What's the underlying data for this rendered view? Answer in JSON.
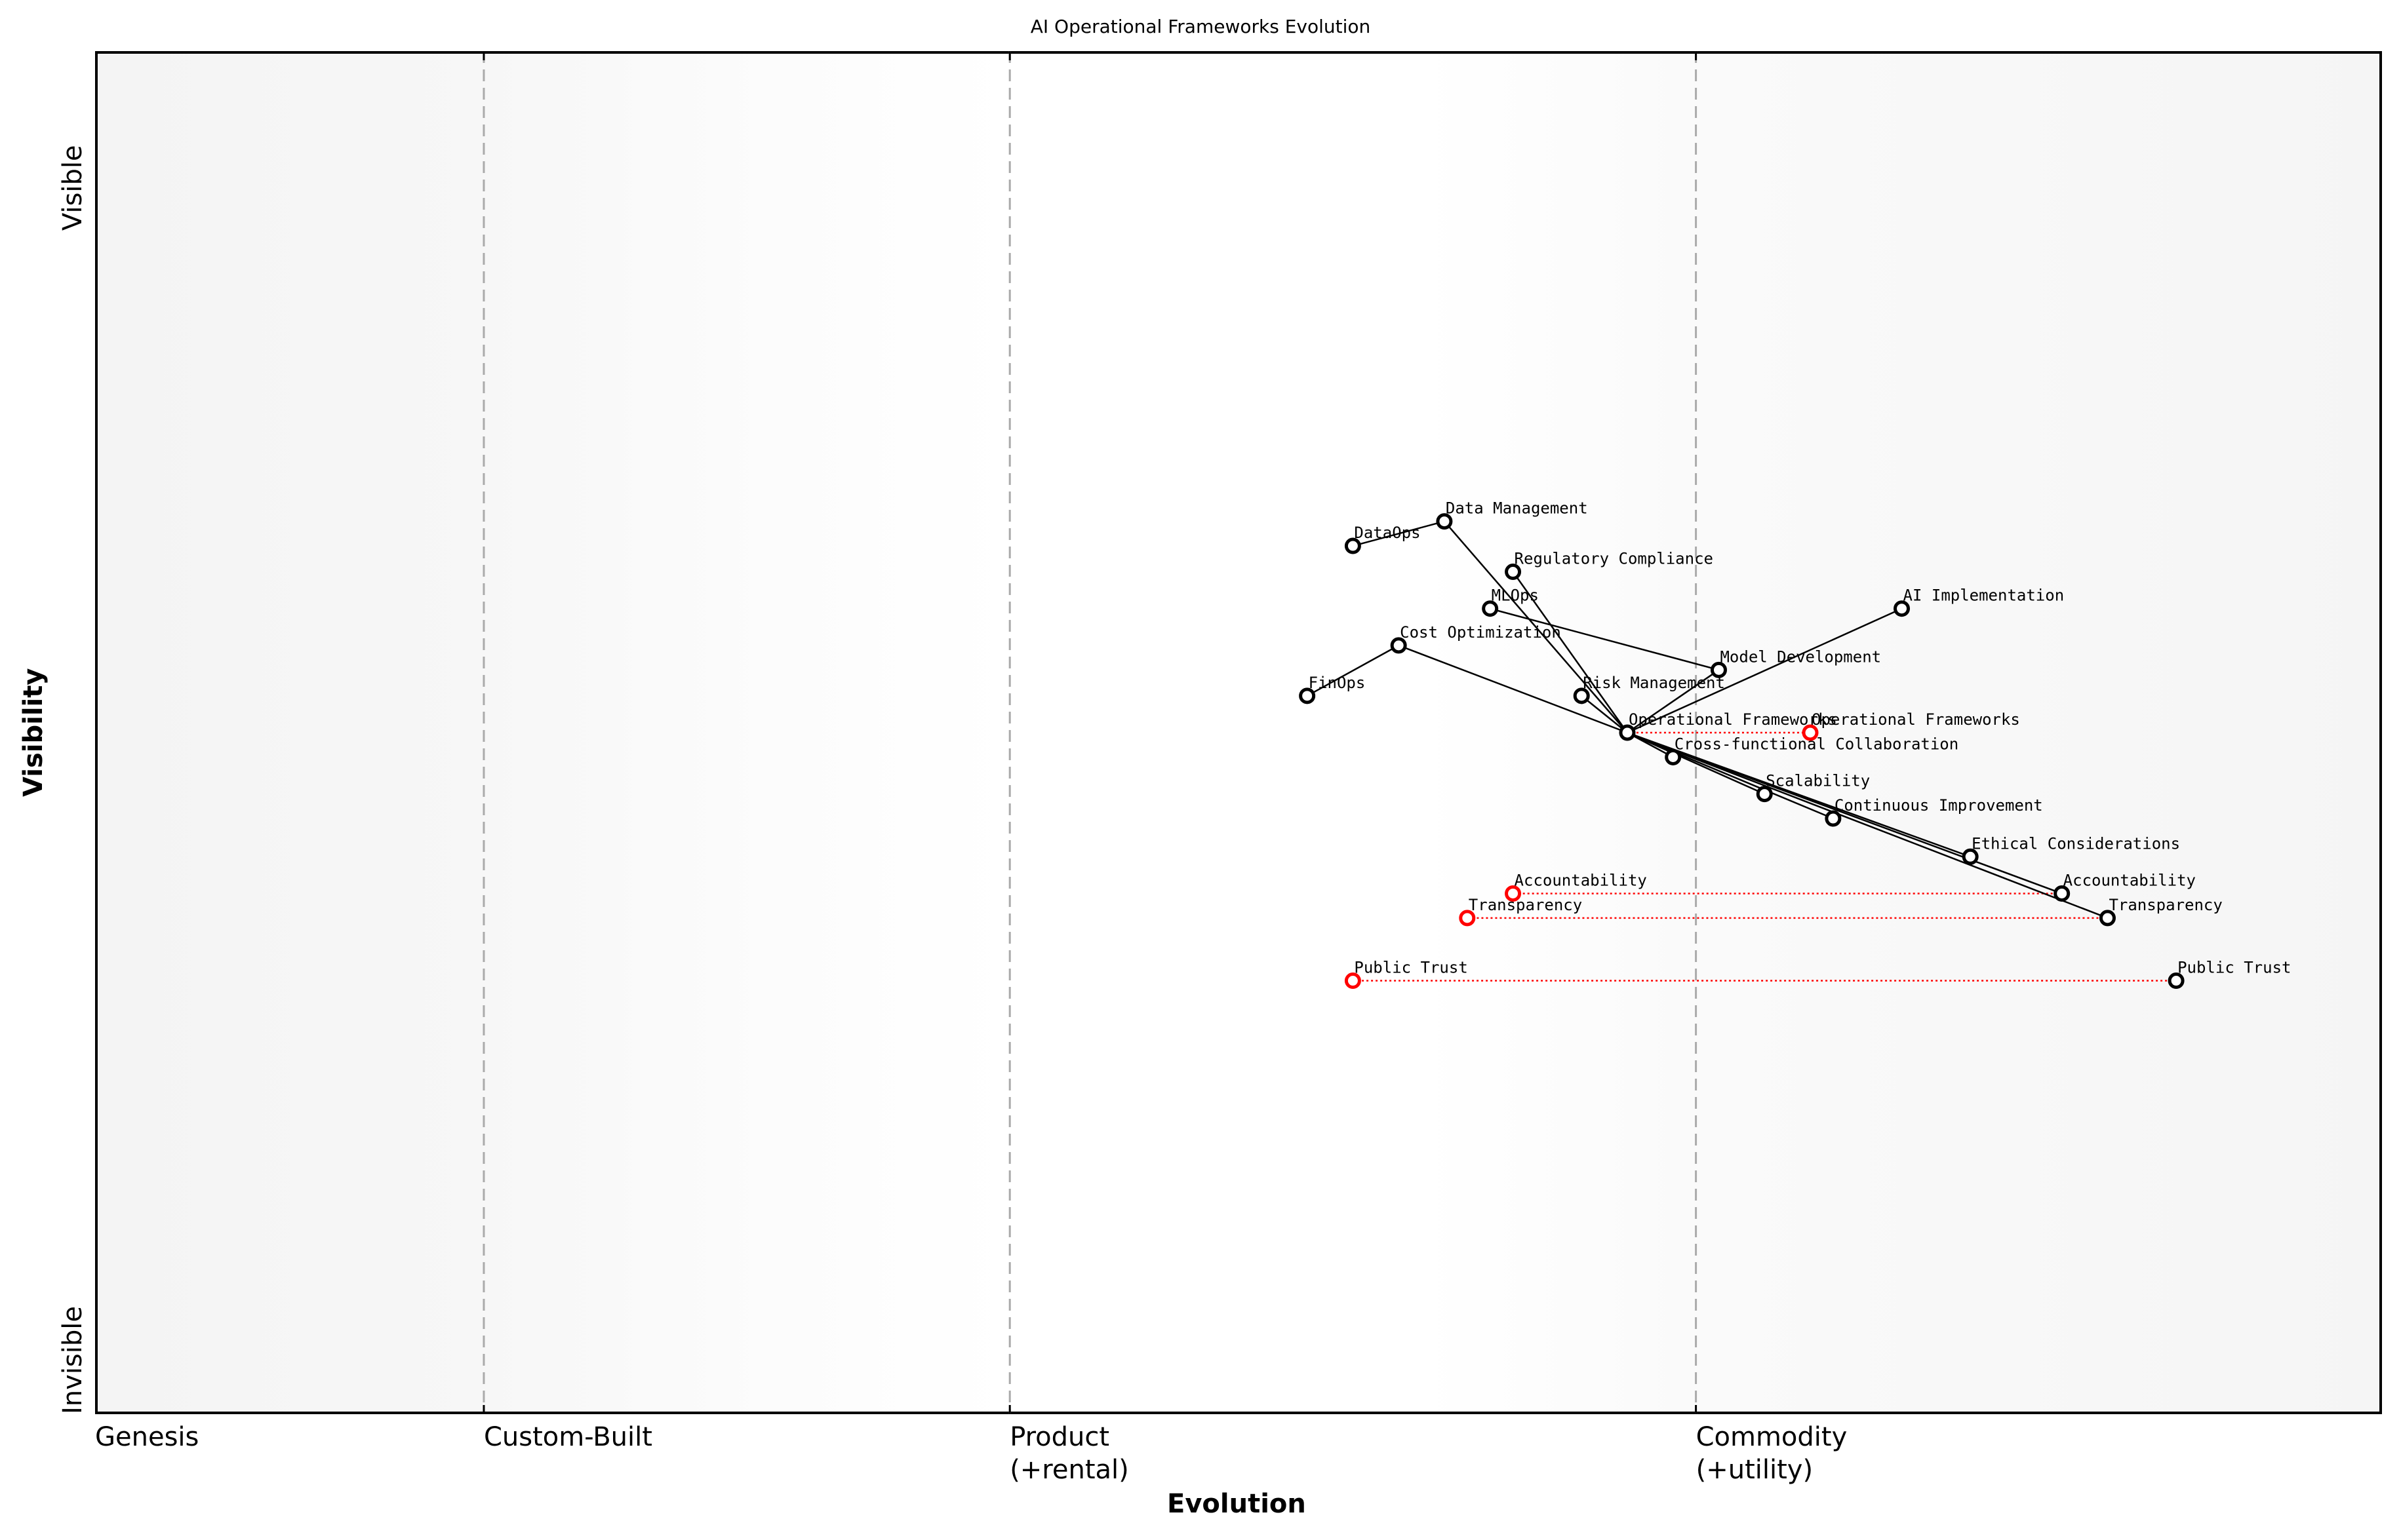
{
  "chart_data": {
    "type": "scatter",
    "title": "AI Operational Frameworks Evolution",
    "xlabel": "Evolution",
    "ylabel": "Visibility",
    "xlim": [
      0,
      1
    ],
    "ylim": [
      0,
      1
    ],
    "grid": false,
    "x_stages": [
      {
        "label": "Genesis",
        "x": 0.0
      },
      {
        "label": "Custom-Built",
        "x": 0.17
      },
      {
        "label": "Product\n(+rental)",
        "x": 0.4
      },
      {
        "label": "Commodity\n(+utility)",
        "x": 0.7
      }
    ],
    "y_ticks": [
      {
        "label": "Invisible",
        "y": 0.0
      },
      {
        "label": "Visible",
        "y": 0.9
      }
    ],
    "components": [
      {
        "name": "Data Management",
        "x": 0.59,
        "y": 0.655
      },
      {
        "name": "DataOps",
        "x": 0.55,
        "y": 0.637
      },
      {
        "name": "Regulatory Compliance",
        "x": 0.62,
        "y": 0.618
      },
      {
        "name": "MLOps",
        "x": 0.61,
        "y": 0.591
      },
      {
        "name": "AI Implementation",
        "x": 0.79,
        "y": 0.591
      },
      {
        "name": "Cost Optimization",
        "x": 0.57,
        "y": 0.564
      },
      {
        "name": "Model Development",
        "x": 0.71,
        "y": 0.546
      },
      {
        "name": "FinOps",
        "x": 0.53,
        "y": 0.527
      },
      {
        "name": "Risk Management",
        "x": 0.65,
        "y": 0.527
      },
      {
        "name": "Operational Frameworks",
        "x": 0.67,
        "y": 0.5
      },
      {
        "name": "Cross-functional Collaboration",
        "x": 0.69,
        "y": 0.482
      },
      {
        "name": "Scalability",
        "x": 0.73,
        "y": 0.455
      },
      {
        "name": "Continuous Improvement",
        "x": 0.76,
        "y": 0.437
      },
      {
        "name": "Ethical Considerations",
        "x": 0.82,
        "y": 0.409
      },
      {
        "name": "Accountability",
        "x": 0.86,
        "y": 0.382
      },
      {
        "name": "Transparency",
        "x": 0.88,
        "y": 0.364
      },
      {
        "name": "Public Trust",
        "x": 0.91,
        "y": 0.318
      }
    ],
    "evolved_components": [
      {
        "name": "Operational Frameworks",
        "x": 0.75,
        "y": 0.5,
        "from_x": 0.67
      },
      {
        "name": "Accountability",
        "x": 0.62,
        "y": 0.382,
        "from_x": 0.86
      },
      {
        "name": "Transparency",
        "x": 0.6,
        "y": 0.364,
        "from_x": 0.88
      },
      {
        "name": "Public Trust",
        "x": 0.55,
        "y": 0.318,
        "from_x": 0.91
      }
    ],
    "links": [
      [
        "DataOps",
        "Data Management"
      ],
      [
        "FinOps",
        "Cost Optimization"
      ],
      [
        "MLOps",
        "Model Development"
      ],
      [
        "Data Management",
        "Operational Frameworks"
      ],
      [
        "Regulatory Compliance",
        "Operational Frameworks"
      ],
      [
        "Cost Optimization",
        "Operational Frameworks"
      ],
      [
        "Risk Management",
        "Operational Frameworks"
      ],
      [
        "Model Development",
        "Operational Frameworks"
      ],
      [
        "AI Implementation",
        "Operational Frameworks"
      ],
      [
        "Operational Frameworks",
        "Cross-functional Collaboration"
      ],
      [
        "Operational Frameworks",
        "Scalability"
      ],
      [
        "Operational Frameworks",
        "Continuous Improvement"
      ],
      [
        "Operational Frameworks",
        "Ethical Considerations"
      ],
      [
        "Operational Frameworks",
        "Accountability"
      ],
      [
        "Operational Frameworks",
        "Transparency"
      ]
    ],
    "colors": {
      "component_stroke": "#000000",
      "evolved_stroke": "#ff0000",
      "link": "#000000",
      "evolution_line": "#ff0000",
      "stage_line": "#aaaaaa"
    }
  }
}
